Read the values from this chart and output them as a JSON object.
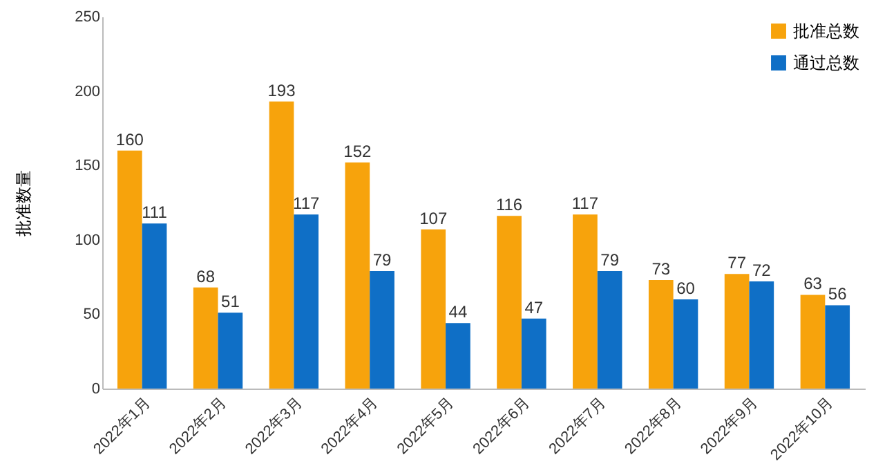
{
  "chart_data": {
    "type": "bar",
    "ylabel": "批准数量",
    "categories": [
      "2022年1月",
      "2022年2月",
      "2022年3月",
      "2022年4月",
      "2022年5月",
      "2022年6月",
      "2022年7月",
      "2022年8月",
      "2022年9月",
      "2022年10月"
    ],
    "series": [
      {
        "name": "批准总数",
        "color": "#f7a30c",
        "values": [
          160,
          68,
          193,
          152,
          107,
          116,
          117,
          73,
          77,
          63
        ]
      },
      {
        "name": "通过总数",
        "color": "#0f6fc6",
        "values": [
          111,
          51,
          117,
          79,
          44,
          47,
          79,
          60,
          72,
          56
        ]
      }
    ],
    "ylim": [
      0,
      250
    ],
    "yticks": [
      0,
      50,
      100,
      150,
      200,
      250
    ],
    "grid": false,
    "legend": "top right",
    "data_labels": true
  }
}
